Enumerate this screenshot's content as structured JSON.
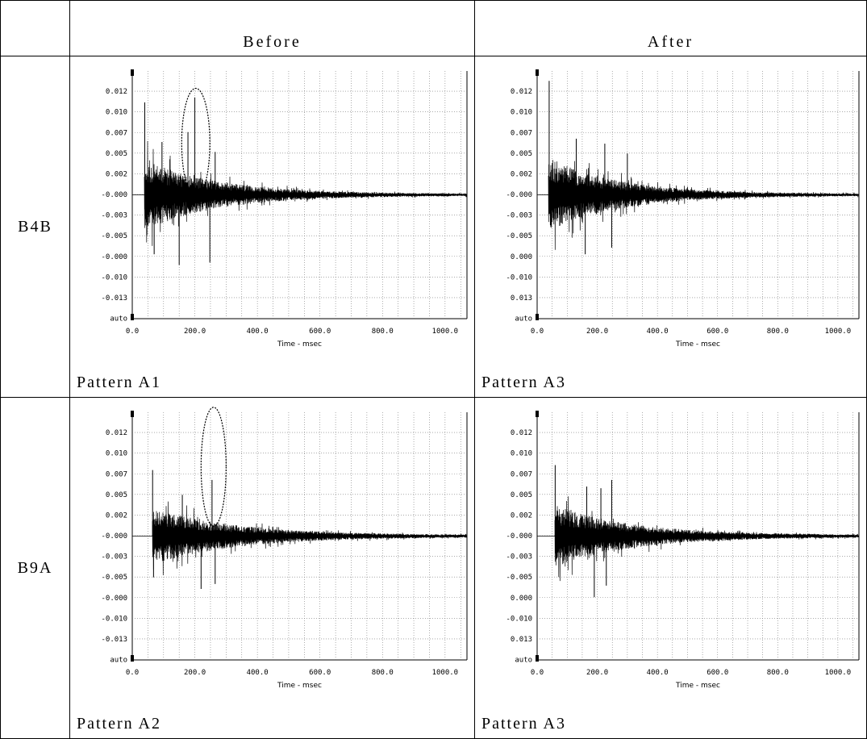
{
  "header": {
    "col_before": "Before",
    "col_after": "After"
  },
  "rows": [
    {
      "label": "B4B"
    },
    {
      "label": "B9A"
    }
  ],
  "chart_data": [
    {
      "type": "line",
      "row": "B4B",
      "column": "Before",
      "caption": "Pattern A1",
      "xlabel": "Time - msec",
      "xlim": [
        0,
        1070
      ],
      "xticks": [
        "0.0",
        "200.0",
        "400.0",
        "600.0",
        "800.0",
        "1000.0"
      ],
      "yticks": [
        "0.012",
        "0.010",
        "0.007",
        "0.005",
        "0.002",
        "-0.000",
        "-0.003",
        "-0.005",
        "-0.000",
        "-0.010",
        "-0.013",
        "auto"
      ],
      "ylim": [
        -0.015,
        0.015
      ],
      "signal": {
        "onset_ms": 40,
        "envelope": 0.0042,
        "decay_ms": 230,
        "seed": 11,
        "spikes": [
          {
            "t": 40,
            "v": 0.0112
          },
          {
            "t": 200,
            "v": 0.0118
          },
          {
            "t": 178,
            "v": 0.0076
          },
          {
            "t": 150,
            "v": -0.0085
          },
          {
            "t": 248,
            "v": -0.0082
          },
          {
            "t": 70,
            "v": -0.0072
          },
          {
            "t": 95,
            "v": 0.0064
          },
          {
            "t": 265,
            "v": 0.0052
          }
        ]
      },
      "highlight": {
        "cx_ms": 203,
        "cy": 0.0063,
        "rx_ms": 45,
        "ry": 0.0066
      }
    },
    {
      "type": "line",
      "row": "B4B",
      "column": "After",
      "caption": "Pattern A3",
      "xlabel": "Time - msec",
      "xlim": [
        0,
        1070
      ],
      "xticks": [
        "0.0",
        "200.0",
        "400.0",
        "600.0",
        "800.0",
        "1000.0"
      ],
      "yticks": [
        "0.012",
        "0.010",
        "0.007",
        "0.005",
        "0.002",
        "-0.000",
        "-0.003",
        "-0.005",
        "0.000",
        "-0.010",
        "0.013",
        "auto"
      ],
      "ylim": [
        -0.015,
        0.015
      ],
      "signal": {
        "onset_ms": 40,
        "envelope": 0.0044,
        "decay_ms": 230,
        "seed": 23,
        "spikes": [
          {
            "t": 40,
            "v": 0.0138
          },
          {
            "t": 130,
            "v": 0.0068
          },
          {
            "t": 225,
            "v": 0.0062
          },
          {
            "t": 300,
            "v": 0.005
          },
          {
            "t": 160,
            "v": -0.0072
          },
          {
            "t": 248,
            "v": -0.0064
          }
        ]
      },
      "highlight": null
    },
    {
      "type": "line",
      "row": "B9A",
      "column": "Before",
      "caption": "Pattern A2",
      "xlabel": "Time - msec",
      "xlim": [
        0,
        1070
      ],
      "xticks": [
        "0.0",
        "200.0",
        "400.0",
        "600.0",
        "800.0",
        "1000.0"
      ],
      "yticks": [
        "0.012",
        "0.010",
        "0.007",
        "0.005",
        "0.002",
        "-0.000",
        "-0.003",
        "-0.005",
        "-0.000",
        "-0.010",
        "-0.013",
        "auto"
      ],
      "ylim": [
        -0.015,
        0.015
      ],
      "signal": {
        "onset_ms": 65,
        "envelope": 0.0034,
        "decay_ms": 260,
        "seed": 37,
        "spikes": [
          {
            "t": 65,
            "v": 0.008
          },
          {
            "t": 68,
            "v": -0.005
          },
          {
            "t": 255,
            "v": 0.0068
          },
          {
            "t": 220,
            "v": -0.0064
          },
          {
            "t": 265,
            "v": -0.0058
          },
          {
            "t": 160,
            "v": 0.005
          }
        ]
      },
      "highlight": {
        "cx_ms": 260,
        "cy": 0.0084,
        "rx_ms": 40,
        "ry": 0.0072
      }
    },
    {
      "type": "line",
      "row": "B9A",
      "column": "After",
      "caption": "Pattern A3",
      "xlabel": "Time - msec",
      "xlim": [
        0,
        1070
      ],
      "xticks": [
        "0.0",
        "200.0",
        "400.0",
        "600.0",
        "800.0",
        "1000.0"
      ],
      "yticks": [
        "0.012",
        "0.010",
        "0.007",
        "0.005",
        "0.002",
        "-0.000",
        "-0.003",
        "-0.005",
        "0.000",
        "-0.010",
        "0.013",
        "auto"
      ],
      "ylim": [
        -0.015,
        0.015
      ],
      "signal": {
        "onset_ms": 60,
        "envelope": 0.0036,
        "decay_ms": 260,
        "seed": 51,
        "spikes": [
          {
            "t": 60,
            "v": 0.0086
          },
          {
            "t": 165,
            "v": 0.006
          },
          {
            "t": 212,
            "v": 0.0058
          },
          {
            "t": 248,
            "v": 0.0068
          },
          {
            "t": 190,
            "v": -0.0074
          },
          {
            "t": 230,
            "v": -0.006
          }
        ]
      },
      "highlight": null
    }
  ]
}
